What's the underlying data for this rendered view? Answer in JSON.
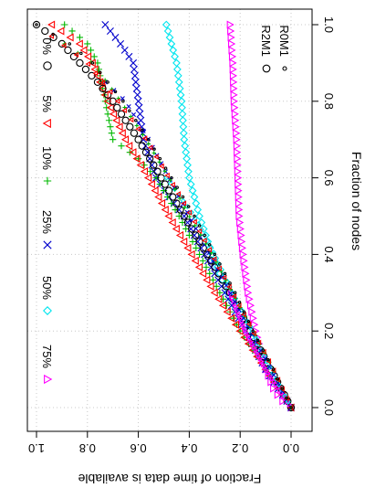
{
  "chart_data": {
    "type": "scatter",
    "xlabel": "Fraction of nodes",
    "ylabel": "Fraction of time data is available",
    "x_ticks": [
      "0.0",
      "0.2",
      "0.4",
      "0.6",
      "0.8",
      "1.0"
    ],
    "y_ticks": [
      "0.0",
      "0.2",
      "0.4",
      "0.6",
      "0.8",
      "1.0"
    ],
    "xlim": [
      0,
      1
    ],
    "ylim": [
      0,
      1
    ],
    "grid": true,
    "rotated": "plot drawn rotated 90 degrees clockwise",
    "legend_series": [
      {
        "label": "75%",
        "color": "#ff00ff",
        "marker": "triangle-down"
      },
      {
        "label": "50%",
        "color": "#00e5ee",
        "marker": "diamond"
      },
      {
        "label": "25%",
        "color": "#0000cd",
        "marker": "x"
      },
      {
        "label": "10%",
        "color": "#00b800",
        "marker": "plus"
      },
      {
        "label": "5%",
        "color": "#ff0000",
        "marker": "triangle-up"
      },
      {
        "label": "0%",
        "color": "#000000",
        "marker": "circle"
      }
    ],
    "legend_method": [
      {
        "label": "R2M1",
        "marker": "circle-large"
      },
      {
        "label": "R0M1",
        "marker": "circle-small"
      }
    ],
    "series": [
      {
        "name": "75%",
        "method": "R2M1",
        "color": "#ff00ff",
        "marker": "triangle-down",
        "x": [
          0.0,
          0.02,
          0.05,
          0.1,
          0.2,
          0.3,
          0.4,
          0.5,
          0.6,
          0.7,
          0.8,
          0.9,
          0.95,
          1.0
        ],
        "y": [
          0.0,
          0.04,
          0.07,
          0.1,
          0.14,
          0.17,
          0.19,
          0.205,
          0.21,
          0.215,
          0.225,
          0.23,
          0.235,
          0.24
        ]
      },
      {
        "name": "50%",
        "method": "R2M1",
        "color": "#00e5ee",
        "marker": "diamond",
        "x": [
          0.0,
          0.05,
          0.1,
          0.2,
          0.3,
          0.4,
          0.5,
          0.6,
          0.7,
          0.8,
          0.9,
          0.95,
          1.0
        ],
        "y": [
          0.0,
          0.05,
          0.1,
          0.17,
          0.25,
          0.31,
          0.36,
          0.4,
          0.42,
          0.43,
          0.45,
          0.47,
          0.49
        ]
      },
      {
        "name": "25%",
        "method": "R2M1",
        "color": "#0000cd",
        "marker": "x",
        "x": [
          0.0,
          0.05,
          0.1,
          0.2,
          0.3,
          0.4,
          0.5,
          0.55,
          0.6,
          0.7,
          0.8,
          0.9,
          0.95,
          1.0
        ],
        "y": [
          0.0,
          0.05,
          0.1,
          0.18,
          0.26,
          0.34,
          0.42,
          0.48,
          0.53,
          0.58,
          0.6,
          0.62,
          0.67,
          0.73
        ]
      },
      {
        "name": "10%",
        "method": "R2M1",
        "color": "#00b800",
        "marker": "plus",
        "x": [
          0.0,
          0.05,
          0.1,
          0.2,
          0.3,
          0.4,
          0.5,
          0.6,
          0.65,
          0.7,
          0.8,
          0.9,
          0.95,
          1.0
        ],
        "y": [
          0.0,
          0.05,
          0.1,
          0.2,
          0.28,
          0.36,
          0.44,
          0.53,
          0.6,
          0.7,
          0.73,
          0.76,
          0.8,
          0.89
        ]
      },
      {
        "name": "5%",
        "method": "R2M1",
        "color": "#ff0000",
        "marker": "triangle-up",
        "x": [
          0.0,
          0.05,
          0.1,
          0.2,
          0.3,
          0.4,
          0.5,
          0.6,
          0.7,
          0.8,
          0.9,
          0.95,
          1.0
        ],
        "y": [
          0.0,
          0.05,
          0.1,
          0.2,
          0.3,
          0.39,
          0.48,
          0.56,
          0.65,
          0.72,
          0.78,
          0.83,
          0.94
        ]
      },
      {
        "name": "0%",
        "method": "R2M1",
        "color": "#000000",
        "marker": "circle",
        "x": [
          0.0,
          0.05,
          0.1,
          0.2,
          0.3,
          0.4,
          0.5,
          0.6,
          0.7,
          0.8,
          0.85,
          0.9,
          0.95,
          1.0
        ],
        "y": [
          0.0,
          0.04,
          0.08,
          0.16,
          0.24,
          0.33,
          0.42,
          0.51,
          0.6,
          0.7,
          0.76,
          0.83,
          0.9,
          1.0
        ]
      },
      {
        "name": "75%",
        "method": "R0M1",
        "color": "#ff00ff",
        "marker": "triangle-down",
        "x": [
          0.0,
          0.05,
          0.1,
          0.15,
          0.2,
          0.25,
          0.3
        ],
        "y": [
          0.0,
          0.05,
          0.1,
          0.14,
          0.18,
          0.21,
          0.24
        ]
      },
      {
        "name": "50%",
        "method": "R0M1",
        "color": "#00e5ee",
        "marker": "diamond",
        "x": [
          0.0,
          0.05,
          0.1,
          0.2,
          0.3,
          0.4,
          0.5,
          0.6
        ],
        "y": [
          0.0,
          0.04,
          0.08,
          0.15,
          0.23,
          0.3,
          0.38,
          0.49
        ]
      },
      {
        "name": "25%",
        "method": "R0M1",
        "color": "#0000cd",
        "marker": "x",
        "x": [
          0.0,
          0.1,
          0.2,
          0.3,
          0.4,
          0.5,
          0.6,
          0.7,
          0.8,
          0.85
        ],
        "y": [
          0.0,
          0.08,
          0.16,
          0.24,
          0.32,
          0.4,
          0.48,
          0.56,
          0.65,
          0.73
        ]
      },
      {
        "name": "10%",
        "method": "R0M1",
        "color": "#00b800",
        "marker": "plus",
        "x": [
          0.0,
          0.1,
          0.2,
          0.3,
          0.4,
          0.5,
          0.6,
          0.7,
          0.8,
          0.9,
          0.95
        ],
        "y": [
          0.0,
          0.07,
          0.15,
          0.23,
          0.31,
          0.4,
          0.48,
          0.57,
          0.67,
          0.78,
          0.89
        ]
      },
      {
        "name": "5%",
        "method": "R0M1",
        "color": "#ff0000",
        "marker": "triangle-up",
        "x": [
          0.0,
          0.1,
          0.2,
          0.3,
          0.4,
          0.5,
          0.6,
          0.7,
          0.8,
          0.9,
          0.97
        ],
        "y": [
          0.0,
          0.07,
          0.15,
          0.23,
          0.31,
          0.39,
          0.48,
          0.57,
          0.68,
          0.8,
          0.94
        ]
      },
      {
        "name": "0%",
        "method": "R0M1",
        "color": "#000000",
        "marker": "circle-small",
        "x": [
          0.0,
          0.1,
          0.2,
          0.3,
          0.4,
          0.5,
          0.6,
          0.7,
          0.8,
          0.9,
          0.95,
          1.0
        ],
        "y": [
          0.0,
          0.07,
          0.15,
          0.22,
          0.3,
          0.38,
          0.47,
          0.56,
          0.66,
          0.78,
          0.87,
          1.0
        ]
      }
    ]
  }
}
